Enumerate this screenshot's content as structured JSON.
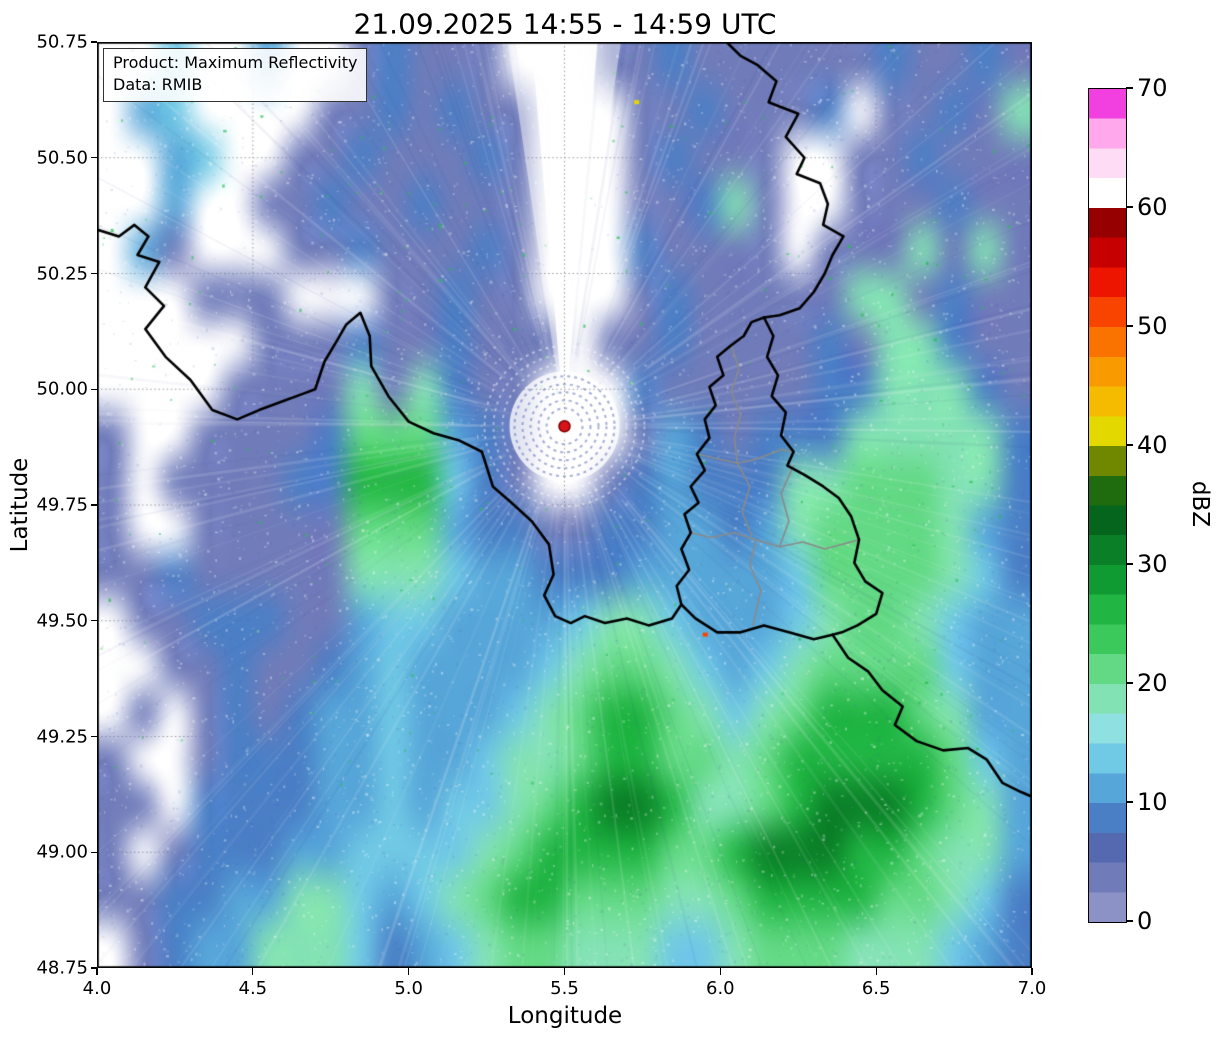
{
  "figure": {
    "title": "21.09.2025 14:55 - 14:59 UTC",
    "info_box": {
      "product": "Product: Maximum Reflectivity",
      "data_source": "Data: RMIB"
    }
  },
  "chart_data": {
    "type": "heatmap",
    "title": "21.09.2025 14:55 - 14:59 UTC",
    "xlabel": "Longitude",
    "ylabel": "Latitude",
    "xlim": [
      4.0,
      7.0
    ],
    "ylim": [
      48.75,
      50.75
    ],
    "xtick_labels": [
      "4.0",
      "4.5",
      "5.0",
      "5.5",
      "6.0",
      "6.5",
      "7.0"
    ],
    "ytick_labels": [
      "48.75",
      "49.00",
      "49.25",
      "49.50",
      "49.75",
      "50.00",
      "50.25",
      "50.50",
      "50.75"
    ],
    "grid_on": true,
    "grid_x": [
      4.5,
      5.0,
      5.5,
      6.0,
      6.5
    ],
    "grid_y": [
      49.0,
      49.25,
      49.5,
      49.75,
      50.0,
      50.25,
      50.5
    ],
    "colorbar": {
      "label": "dBZ",
      "min": 0,
      "max": 70,
      "tick_labels": [
        "0",
        "10",
        "20",
        "30",
        "40",
        "50",
        "60",
        "70"
      ],
      "colors_bottom_to_top": [
        "#8c92c6",
        "#707cba",
        "#5569b1",
        "#4a7fc6",
        "#57a6d9",
        "#70c9e5",
        "#8fe0e0",
        "#83e2b4",
        "#63d985",
        "#3cc95c",
        "#21b544",
        "#109a32",
        "#0a7f27",
        "#06651c",
        "#1e6c0d",
        "#6f8800",
        "#e3d800",
        "#f4bb00",
        "#f99b00",
        "#fa7300",
        "#f94400",
        "#ed1500",
        "#c60000",
        "#970000",
        "#ffffff",
        "#ffdcf5",
        "#ffa8ec",
        "#f23fe0"
      ]
    },
    "radar_site": {
      "lon": 5.5,
      "lat": 49.92,
      "marker_color": "#d8141b"
    },
    "clear_sector": {
      "azimuth_deg": 0,
      "half_width_deg": 3.5
    },
    "point_echoes": [
      {
        "lon": 5.73,
        "lat": 50.62,
        "dbz": 42
      },
      {
        "lon": 5.95,
        "lat": 49.47,
        "dbz": 52
      }
    ],
    "reflectivity_grid": {
      "cols": 30,
      "rows": 20,
      "lon_min": 4.0,
      "lon_max": 7.0,
      "lat_max": 50.75,
      "lat_min": 48.75,
      "legend": {
        ".": null,
        "1": 4,
        "2": 8,
        "3": 12,
        "4": 14,
        "5": 18,
        "6": 22,
        "7": 26,
        "8": 31
      },
      "rows_top_to_bottom": [
        "..4..3..12111...11211111121121",
        ".34....1121211...1121112.11215",
        "..34..11211121...12111..112111",
        "..3..112112111...11251..111211",
        ".31...11211121...21111.1115151",
        "...111...11211...1211111551211",
        ".....1112112111.11211112155211",
        "....1111515211...2111112255521",
        "1..11112666321...1321222555552",
        "1.111122777421..12322255666552",
        "1..111116663221122332356666532",
        "112111115554332223333346666542",
        ".11222113443333455433345665433",
        "..1121123433334566543456666433",
        ".1.121233433345677654567776533",
        "1..122233433455677665677777643",
        "11.222233434456788755678887653",
        "1.1222334444567777667888776553",
        "112233554345677666556777766542",
        ".12335554234566555445666555432"
      ]
    },
    "borders": {
      "national_color": "#000000",
      "regional_color": "#8a8a8a",
      "national": [
        [
          [
            4.0,
            50.345
          ],
          [
            4.07,
            50.33
          ],
          [
            4.12,
            50.355
          ],
          [
            4.165,
            50.33
          ],
          [
            4.13,
            50.29
          ],
          [
            4.2,
            50.275
          ],
          [
            4.155,
            50.22
          ],
          [
            4.215,
            50.18
          ],
          [
            4.155,
            50.13
          ],
          [
            4.22,
            50.07
          ],
          [
            4.3,
            50.02
          ],
          [
            4.37,
            49.955
          ],
          [
            4.45,
            49.935
          ],
          [
            4.52,
            49.955
          ],
          [
            4.6,
            49.975
          ],
          [
            4.66,
            49.99
          ],
          [
            4.7,
            50.0
          ],
          [
            4.73,
            50.06
          ],
          [
            4.77,
            50.105
          ],
          [
            4.8,
            50.14
          ],
          [
            4.845,
            50.165
          ],
          [
            4.875,
            50.115
          ],
          [
            4.88,
            50.05
          ],
          [
            4.935,
            49.985
          ],
          [
            5.0,
            49.93
          ],
          [
            5.08,
            49.905
          ],
          [
            5.16,
            49.89
          ],
          [
            5.235,
            49.865
          ],
          [
            5.27,
            49.79
          ],
          [
            5.33,
            49.755
          ],
          [
            5.395,
            49.715
          ],
          [
            5.45,
            49.665
          ],
          [
            5.465,
            49.6
          ],
          [
            5.435,
            49.555
          ],
          [
            5.47,
            49.51
          ],
          [
            5.52,
            49.495
          ],
          [
            5.565,
            49.51
          ],
          [
            5.63,
            49.495
          ],
          [
            5.7,
            49.505
          ],
          [
            5.77,
            49.49
          ],
          [
            5.845,
            49.505
          ],
          [
            5.875,
            49.535
          ],
          [
            5.92,
            49.505
          ],
          [
            5.99,
            49.475
          ],
          [
            6.065,
            49.475
          ],
          [
            6.14,
            49.49
          ],
          [
            6.22,
            49.475
          ],
          [
            6.3,
            49.46
          ],
          [
            6.36,
            49.47
          ],
          [
            6.41,
            49.42
          ],
          [
            6.475,
            49.39
          ],
          [
            6.52,
            49.35
          ],
          [
            6.585,
            49.315
          ],
          [
            6.56,
            49.275
          ],
          [
            6.63,
            49.24
          ],
          [
            6.715,
            49.22
          ],
          [
            6.795,
            49.225
          ],
          [
            6.855,
            49.2
          ],
          [
            6.905,
            49.15
          ],
          [
            6.965,
            49.13
          ],
          [
            7.0,
            49.12
          ]
        ],
        [
          [
            6.02,
            50.75
          ],
          [
            6.065,
            50.72
          ],
          [
            6.12,
            50.7
          ],
          [
            6.18,
            50.665
          ],
          [
            6.155,
            50.62
          ],
          [
            6.25,
            50.595
          ],
          [
            6.21,
            50.545
          ],
          [
            6.27,
            50.5
          ],
          [
            6.245,
            50.465
          ],
          [
            6.32,
            50.445
          ],
          [
            6.345,
            50.4
          ],
          [
            6.33,
            50.355
          ],
          [
            6.395,
            50.33
          ],
          [
            6.36,
            50.29
          ],
          [
            6.335,
            50.25
          ],
          [
            6.3,
            50.21
          ],
          [
            6.255,
            50.175
          ],
          [
            6.19,
            50.16
          ],
          [
            6.14,
            50.155
          ]
        ],
        [
          [
            5.875,
            49.535
          ],
          [
            5.86,
            49.575
          ],
          [
            5.9,
            49.61
          ],
          [
            5.875,
            49.655
          ],
          [
            5.905,
            49.69
          ],
          [
            5.885,
            49.73
          ],
          [
            5.93,
            49.755
          ],
          [
            5.905,
            49.79
          ],
          [
            5.95,
            49.825
          ],
          [
            5.925,
            49.86
          ],
          [
            5.965,
            49.895
          ],
          [
            5.95,
            49.935
          ],
          [
            5.985,
            49.965
          ],
          [
            5.965,
            50.005
          ],
          [
            6.01,
            50.03
          ],
          [
            5.99,
            50.07
          ],
          [
            6.035,
            50.095
          ],
          [
            6.075,
            50.115
          ],
          [
            6.1,
            50.145
          ],
          [
            6.14,
            50.155
          ],
          [
            6.17,
            50.115
          ],
          [
            6.15,
            50.07
          ],
          [
            6.185,
            50.03
          ],
          [
            6.165,
            49.985
          ],
          [
            6.21,
            49.95
          ],
          [
            6.195,
            49.9
          ],
          [
            6.235,
            49.865
          ],
          [
            6.215,
            49.835
          ],
          [
            6.27,
            49.815
          ],
          [
            6.33,
            49.79
          ],
          [
            6.38,
            49.765
          ],
          [
            6.42,
            49.725
          ],
          [
            6.445,
            49.675
          ],
          [
            6.43,
            49.625
          ],
          [
            6.465,
            49.585
          ],
          [
            6.52,
            49.56
          ],
          [
            6.5,
            49.515
          ],
          [
            6.44,
            49.49
          ],
          [
            6.39,
            49.475
          ],
          [
            6.36,
            49.47
          ]
        ]
      ],
      "regional": [
        [
          [
            5.925,
            49.86
          ],
          [
            5.99,
            49.85
          ],
          [
            6.055,
            49.84
          ],
          [
            6.12,
            49.85
          ],
          [
            6.195,
            49.87
          ],
          [
            6.235,
            49.865
          ]
        ],
        [
          [
            6.035,
            50.095
          ],
          [
            6.06,
            50.045
          ],
          [
            6.035,
            49.995
          ],
          [
            6.065,
            49.945
          ],
          [
            6.045,
            49.895
          ],
          [
            6.055,
            49.84
          ]
        ],
        [
          [
            5.905,
            49.69
          ],
          [
            5.97,
            49.68
          ],
          [
            6.045,
            49.69
          ],
          [
            6.115,
            49.675
          ],
          [
            6.19,
            49.66
          ],
          [
            6.265,
            49.67
          ],
          [
            6.335,
            49.655
          ],
          [
            6.445,
            49.675
          ]
        ],
        [
          [
            6.055,
            49.84
          ],
          [
            6.095,
            49.79
          ],
          [
            6.07,
            49.735
          ],
          [
            6.1,
            49.685
          ]
        ],
        [
          [
            6.19,
            49.66
          ],
          [
            6.22,
            49.715
          ],
          [
            6.195,
            49.775
          ],
          [
            6.235,
            49.835
          ]
        ],
        [
          [
            6.115,
            49.675
          ],
          [
            6.095,
            49.62
          ],
          [
            6.13,
            49.565
          ],
          [
            6.105,
            49.49
          ]
        ]
      ]
    }
  }
}
